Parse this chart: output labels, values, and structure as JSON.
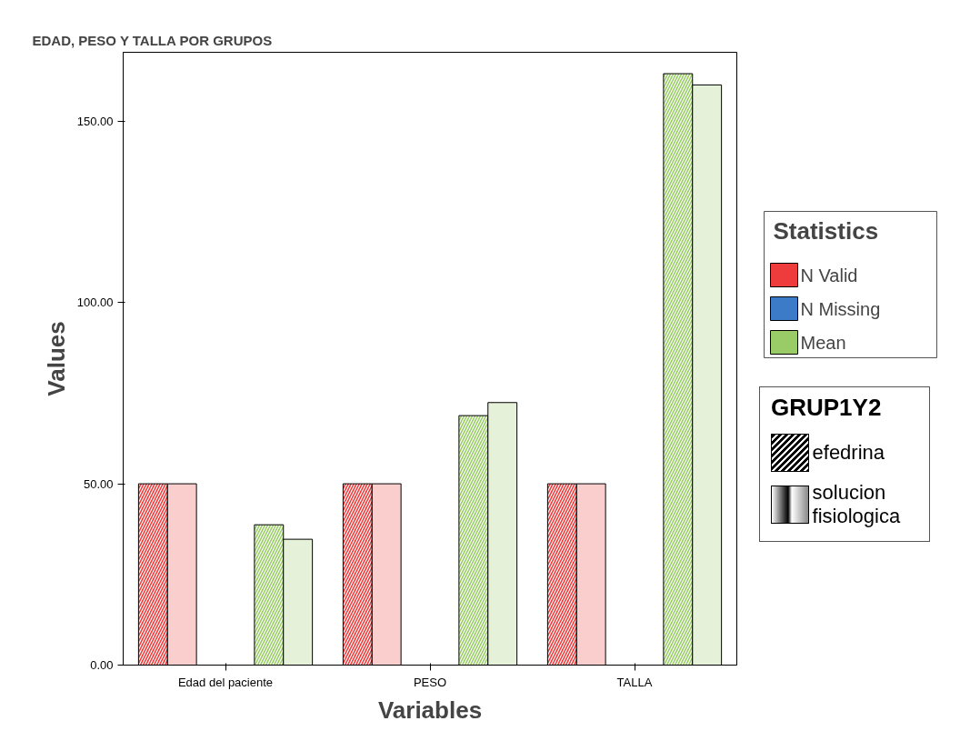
{
  "chart_data": {
    "type": "bar",
    "title": "EDAD, PESO Y TALLA POR GRUPOS",
    "xlabel": "Variables",
    "ylabel": "Values",
    "categories": [
      "Edad del paciente",
      "PESO",
      "TALLA"
    ],
    "legend_title": "Statistics",
    "annotations": [
      "GRUP1Y2",
      "efedrina",
      "solucion fisiologica"
    ],
    "series": [
      {
        "name": "N Valid",
        "color": "#ee3b3b",
        "values": [
          50,
          50,
          50
        ]
      },
      {
        "name": "N Missing",
        "color": "#3b7bc8",
        "values": [
          0,
          0,
          0
        ]
      },
      {
        "name": "Mean",
        "color": "#99cc66",
        "values": [
          38.7,
          68.8,
          163.1
        ]
      },
      {
        "color": "#fbcece",
        "values": [
          50,
          50,
          50
        ]
      },
      {
        "color": "#cedef1",
        "values": [
          0,
          0,
          0
        ]
      },
      {
        "color": "#e5f2d9",
        "values": [
          34.7,
          72.4,
          160.0
        ]
      }
    ],
    "ylim": [
      0,
      169
    ],
    "yticks": [
      {
        "value": 0,
        "label": "0.00"
      },
      {
        "value": 50,
        "label": "50.00"
      },
      {
        "value": 100,
        "label": "100.00"
      },
      {
        "value": 150,
        "label": "150.00"
      }
    ],
    "grid": false,
    "legend": "right"
  }
}
